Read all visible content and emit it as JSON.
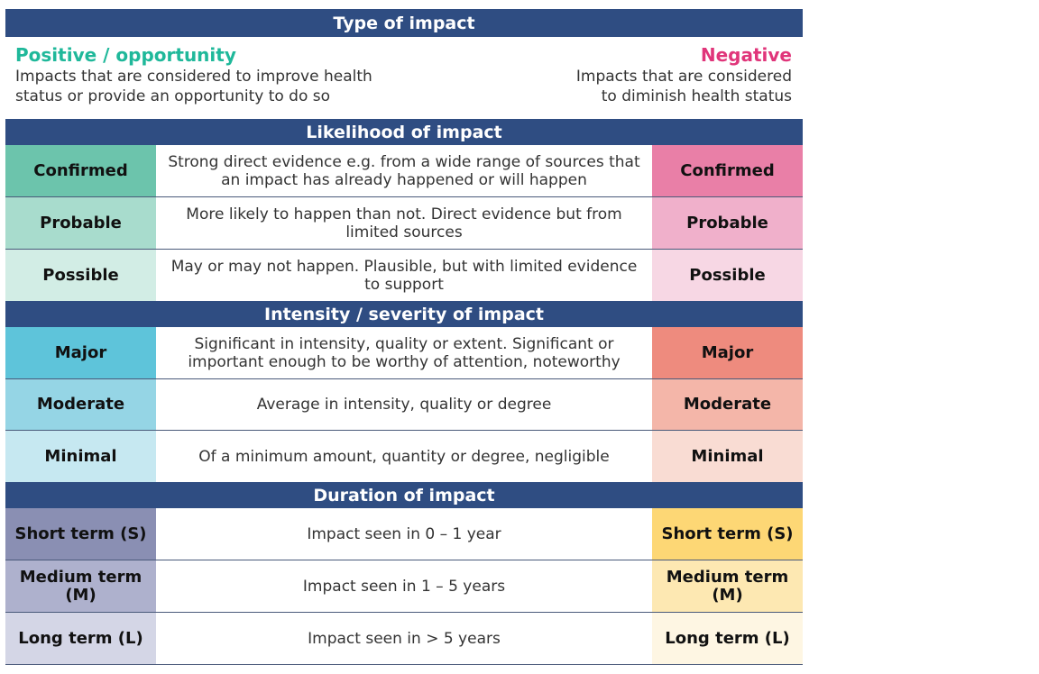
{
  "type_band": "Type of impact",
  "positive": {
    "title": "Positive / opportunity",
    "desc_line1": "Impacts that are considered  to improve health",
    "desc_line2": "status or provide an opportunity to do so"
  },
  "negative": {
    "title": "Negative",
    "desc_line1": "Impacts that are considered",
    "desc_line2": "to diminish health status"
  },
  "likelihood": {
    "title": "Likelihood of impact",
    "rows": [
      {
        "left": "Confirmed",
        "mid": "Strong direct evidence e.g. from a wide range of sources that an impact has already happened or will happen",
        "right": "Confirmed"
      },
      {
        "left": "Probable",
        "mid": "More likely to happen than not. Direct evidence but from limited sources",
        "right": "Probable"
      },
      {
        "left": "Possible",
        "mid": "May or may not happen. Plausible, but with limited evidence to support",
        "right": "Possible"
      }
    ]
  },
  "intensity": {
    "title": "Intensity / severity of impact",
    "rows": [
      {
        "left": "Major",
        "mid": "Significant in intensity, quality or extent. Significant or important enough to be worthy of attention, noteworthy",
        "right": "Major"
      },
      {
        "left": "Moderate",
        "mid": "Average in intensity, quality or degree",
        "right": "Moderate"
      },
      {
        "left": "Minimal",
        "mid": "Of a minimum amount, quantity or degree, negligible",
        "right": "Minimal"
      }
    ]
  },
  "duration": {
    "title": "Duration of  impact",
    "rows": [
      {
        "left": "Short term (S)",
        "mid": "Impact seen in 0 – 1 year",
        "right": "Short term (S)"
      },
      {
        "left": "Medium term (M)",
        "mid": "Impact seen in 1 – 5 years",
        "right": "Medium term (M)"
      },
      {
        "left": "Long term (L)",
        "mid": "Impact seen in > 5 years",
        "right": "Long term (L)"
      }
    ]
  },
  "colors": {
    "band": "#2f4d82",
    "likelihood_left": [
      "#6cc4ac",
      "#a8dccd",
      "#d2ede5"
    ],
    "likelihood_right": [
      "#e97fa7",
      "#f0b0cb",
      "#f7d7e4"
    ],
    "intensity_left": [
      "#5ec4da",
      "#95d5e5",
      "#c6e8f1"
    ],
    "intensity_right": [
      "#ee8b7e",
      "#f4b6a9",
      "#f9dcd3"
    ],
    "duration_left": [
      "#8a8fb3",
      "#aeb1cd",
      "#d4d6e6"
    ],
    "duration_right": [
      "#fdd775",
      "#fde8b2",
      "#fef6e3"
    ]
  }
}
